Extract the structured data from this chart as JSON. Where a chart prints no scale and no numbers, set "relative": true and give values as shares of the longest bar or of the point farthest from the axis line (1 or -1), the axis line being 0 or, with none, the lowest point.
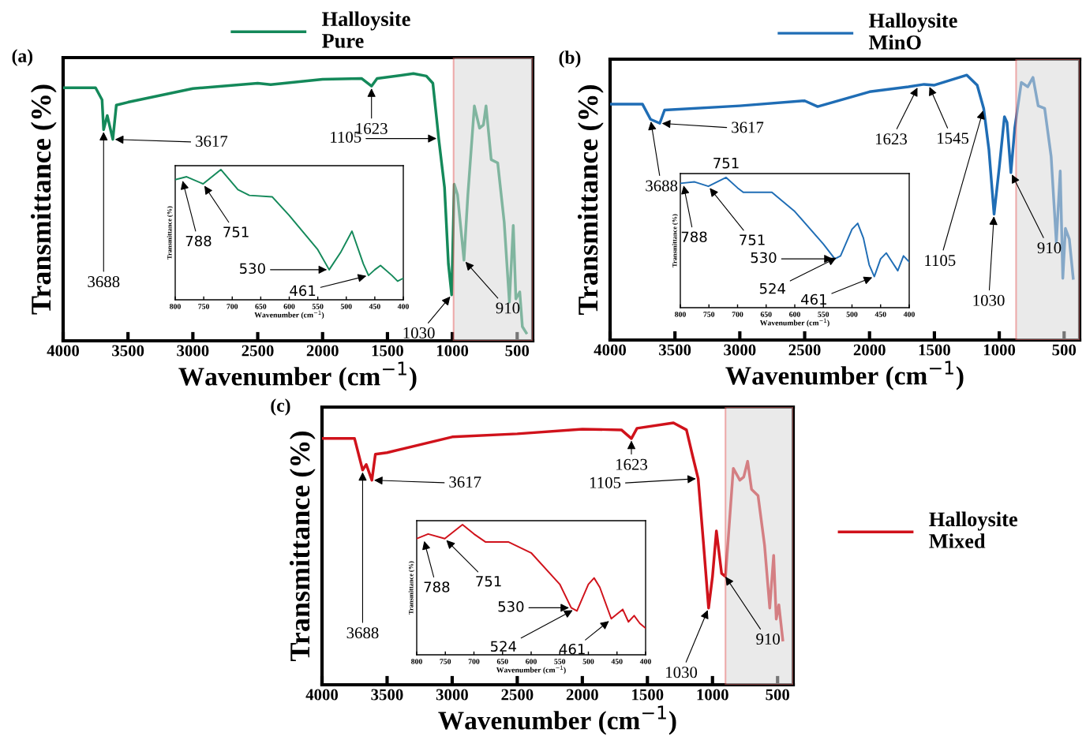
{
  "chart_data": [
    {
      "type": "line",
      "relative": true,
      "tick_labels": "x",
      "xlabel": "Wavenumber (cm$^{−1}$)",
      "ylabel": "Transmittance (%)",
      "xlim": [
        4000,
        380
      ],
      "xticks": [
        4000,
        3500,
        3000,
        2500,
        2000,
        1500,
        1000,
        500
      ],
      "legend": "top",
      "grid": false,
      "series": [
        {
          "name": "Halloysite\nPure",
          "color": "#14895a",
          "x": [
            4000,
            3750,
            3700,
            3688,
            3660,
            3617,
            3590,
            3500,
            3000,
            2500,
            2400,
            2000,
            1700,
            1623,
            1580,
            1300,
            1200,
            1150,
            1120,
            1105,
            1060,
            1030,
            1005,
            985,
            960,
            910,
            880,
            830,
            790,
            760,
            740,
            700,
            650,
            600,
            560,
            530,
            510,
            480,
            460,
            430
          ],
          "values": [
            0.947,
            0.947,
            0.902,
            0.79,
            0.843,
            0.754,
            0.882,
            0.893,
            0.944,
            0.964,
            0.959,
            0.979,
            0.982,
            0.953,
            0.982,
            1.0,
            0.991,
            0.964,
            0.828,
            0.757,
            0.574,
            0.287,
            0.172,
            0.586,
            0.547,
            0.302,
            0.547,
            0.879,
            0.796,
            0.808,
            0.879,
            0.678,
            0.666,
            0.444,
            0.145,
            0.432,
            0.157,
            0.183,
            0.053,
            0.03
          ]
        }
      ],
      "bands": [
        {
          "axis": "x",
          "from": 990,
          "to": 380,
          "color": "#d9d9d9"
        }
      ],
      "annotations": [
        "(a)",
        {
          "text": "3688",
          "x": 3688,
          "y": 0.79
        },
        {
          "text": "3617",
          "x": 3617,
          "y": 0.754
        },
        {
          "text": "1623",
          "x": 1623,
          "y": 0.953
        },
        {
          "text": "1105",
          "x": 1105,
          "y": 0.757
        },
        {
          "text": "1030",
          "x": 1005,
          "y": 0.172
        },
        {
          "text": "910",
          "x": 910,
          "y": 0.302
        }
      ]
    },
    {
      "type": "line",
      "relative": true,
      "tick_labels": "x",
      "xlabel": "Wavenumber (cm$^{−1}$)",
      "ylabel": "Transmittance (%)",
      "xlim": [
        800,
        400
      ],
      "xticks": [
        800,
        750,
        700,
        650,
        600,
        550,
        500,
        450,
        400
      ],
      "grid": false,
      "series": [
        {
          "color": "#14895a",
          "x": [
            800,
            780,
            751,
            720,
            690,
            670,
            630,
            600,
            550,
            530,
            510,
            490,
            470,
            461,
            450,
            440,
            420,
            410,
            400
          ],
          "values": [
            0.923,
            0.945,
            0.89,
            1.0,
            0.846,
            0.802,
            0.791,
            0.648,
            0.385,
            0.231,
            0.363,
            0.527,
            0.275,
            0.187,
            0.231,
            0.264,
            0.187,
            0.143,
            0.165
          ]
        }
      ],
      "annotations": [
        {
          "text": "788",
          "x": 788,
          "y": 0.93
        },
        {
          "text": "751",
          "x": 751,
          "y": 0.89
        },
        {
          "text": "530",
          "x": 530,
          "y": 0.231
        },
        {
          "text": "461",
          "x": 461,
          "y": 0.187
        }
      ]
    },
    {
      "type": "line",
      "relative": true,
      "tick_labels": "x",
      "xlabel": "Wavenumber (cm$^{−1}$)",
      "ylabel": "Transmittance (%)",
      "xlim": [
        4000,
        380
      ],
      "xticks": [
        4000,
        3500,
        3000,
        2500,
        2000,
        1500,
        1000,
        500
      ],
      "legend": "top",
      "grid": false,
      "series": [
        {
          "name": "Halloysite\nMinO",
          "color": "#1f6db5",
          "x": [
            4000,
            3750,
            3688,
            3617,
            3580,
            3000,
            2500,
            2400,
            2000,
            1700,
            1580,
            1500,
            1250,
            1170,
            1120,
            1080,
            1040,
            1000,
            960,
            940,
            910,
            880,
            830,
            780,
            740,
            700,
            650,
            600,
            560,
            530,
            510,
            490,
            460,
            430
          ],
          "values": [
            0.89,
            0.89,
            0.833,
            0.818,
            0.868,
            0.884,
            0.903,
            0.881,
            0.937,
            0.956,
            0.965,
            0.962,
            1.0,
            0.962,
            0.874,
            0.72,
            0.475,
            0.651,
            0.843,
            0.821,
            0.632,
            0.802,
            0.972,
            0.956,
            0.991,
            0.884,
            0.874,
            0.692,
            0.368,
            0.638,
            0.233,
            0.421,
            0.381,
            0.233
          ]
        }
      ],
      "bands": [
        {
          "axis": "x",
          "from": 870,
          "to": 380,
          "color": "#d9d9d9"
        }
      ],
      "annotations": [
        "(b)",
        {
          "text": "3688",
          "x": 3688,
          "y": 0.833
        },
        {
          "text": "3617",
          "x": 3617,
          "y": 0.818
        },
        {
          "text": "1623",
          "x": 1623,
          "y": 0.96
        },
        {
          "text": "1545",
          "x": 1545,
          "y": 0.963
        },
        {
          "text": "1105",
          "x": 1120,
          "y": 0.874
        },
        {
          "text": "1030",
          "x": 1040,
          "y": 0.475
        },
        {
          "text": "910",
          "x": 910,
          "y": 0.632
        }
      ]
    },
    {
      "type": "line",
      "relative": true,
      "tick_labels": "x",
      "xlabel": "Wavenumber (cm$^{−1}$)",
      "ylabel": "Transmittance (%)",
      "xlim": [
        800,
        400
      ],
      "xticks": [
        800,
        750,
        700,
        650,
        600,
        550,
        500,
        450,
        400
      ],
      "grid": false,
      "series": [
        {
          "color": "#1f6db5",
          "x": [
            800,
            775,
            751,
            720,
            700,
            690,
            640,
            600,
            550,
            530,
            520,
            500,
            490,
            480,
            470,
            461,
            450,
            440,
            430,
            420,
            410,
            400
          ],
          "values": [
            0.955,
            0.966,
            0.932,
            1.0,
            0.92,
            0.886,
            0.886,
            0.739,
            0.489,
            0.375,
            0.398,
            0.602,
            0.648,
            0.534,
            0.33,
            0.239,
            0.375,
            0.42,
            0.352,
            0.284,
            0.398,
            0.352
          ]
        }
      ],
      "annotations": [
        {
          "text": "751",
          "x": 720,
          "y": 1.0
        },
        {
          "text": "788",
          "x": 795,
          "y": 0.955
        },
        {
          "text": "751",
          "x": 751,
          "y": 0.932
        },
        {
          "text": "530",
          "x": 530,
          "y": 0.375
        },
        {
          "text": "524",
          "x": 524,
          "y": 0.39
        },
        {
          "text": "461",
          "x": 461,
          "y": 0.239
        }
      ]
    },
    {
      "type": "line",
      "relative": true,
      "tick_labels": "x",
      "xlabel": "Wavenumber (cm$^{−1}$)",
      "ylabel": "Transmittance (%)",
      "xlim": [
        4000,
        380
      ],
      "xticks": [
        4000,
        3500,
        3000,
        2500,
        2000,
        1500,
        1000,
        500
      ],
      "legend": "right",
      "grid": false,
      "series": [
        {
          "name": "Halloysite\nMixed",
          "color": "#d0121b",
          "x": [
            4000,
            3750,
            3688,
            3660,
            3617,
            3590,
            3500,
            3000,
            2500,
            2000,
            1700,
            1623,
            1580,
            1300,
            1200,
            1150,
            1110,
            1070,
            1030,
            1000,
            970,
            930,
            900,
            840,
            790,
            760,
            730,
            700,
            650,
            600,
            560,
            530,
            510,
            490,
            460
          ],
          "values": [
            0.94,
            0.94,
            0.82,
            0.841,
            0.781,
            0.88,
            0.886,
            0.946,
            0.958,
            0.976,
            0.973,
            0.94,
            0.979,
            1.0,
            0.973,
            0.868,
            0.787,
            0.545,
            0.293,
            0.413,
            0.587,
            0.425,
            0.413,
            0.826,
            0.781,
            0.793,
            0.853,
            0.746,
            0.722,
            0.533,
            0.293,
            0.494,
            0.251,
            0.305,
            0.171
          ]
        }
      ],
      "bands": [
        {
          "axis": "x",
          "from": 900,
          "to": 380,
          "color": "#d9d9d9"
        }
      ],
      "annotations": [
        "(c)",
        {
          "text": "3688",
          "x": 3688,
          "y": 0.82
        },
        {
          "text": "3617",
          "x": 3617,
          "y": 0.781
        },
        {
          "text": "1623",
          "x": 1623,
          "y": 0.94
        },
        {
          "text": "1105",
          "x": 1110,
          "y": 0.787
        },
        {
          "text": "1030",
          "x": 1030,
          "y": 0.293
        },
        {
          "text": "910",
          "x": 910,
          "y": 0.42
        }
      ]
    },
    {
      "type": "line",
      "relative": true,
      "tick_labels": "x",
      "xlabel": "Wavenumber (cm$^{−1}$)",
      "ylabel": "Transmittance (%)",
      "xlim": [
        800,
        400
      ],
      "xticks": [
        800,
        750,
        700,
        650,
        600,
        550,
        500,
        450,
        400
      ],
      "grid": false,
      "series": [
        {
          "color": "#d0121b",
          "x": [
            800,
            780,
            751,
            720,
            700,
            680,
            640,
            600,
            550,
            530,
            520,
            500,
            490,
            480,
            460,
            440,
            430,
            420,
            410,
            400
          ],
          "values": [
            0.892,
            0.928,
            0.892,
            1.0,
            0.928,
            0.867,
            0.867,
            0.783,
            0.542,
            0.361,
            0.337,
            0.542,
            0.59,
            0.518,
            0.277,
            0.349,
            0.253,
            0.301,
            0.241,
            0.205
          ]
        }
      ],
      "annotations": [
        {
          "text": "788",
          "x": 788,
          "y": 0.89
        },
        {
          "text": "751",
          "x": 751,
          "y": 0.892
        },
        {
          "text": "530",
          "x": 530,
          "y": 0.361
        },
        {
          "text": "524",
          "x": 524,
          "y": 0.35
        },
        {
          "text": "461",
          "x": 461,
          "y": 0.27
        }
      ]
    }
  ]
}
